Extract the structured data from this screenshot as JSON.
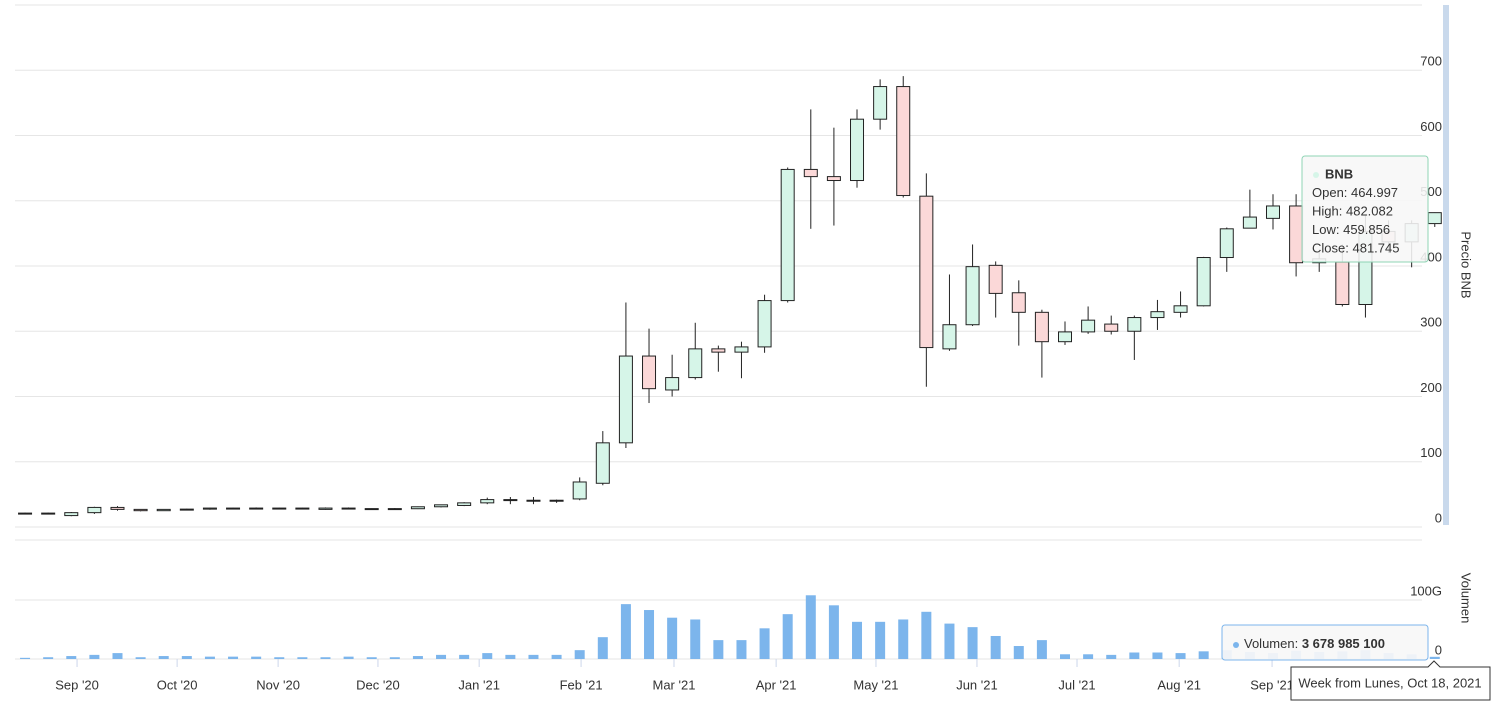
{
  "chart_data": [
    {
      "type": "candlestick",
      "y_axis_title": "Precio BNB",
      "categories": [
        null,
        null,
        null,
        null,
        null,
        null,
        null,
        null,
        null,
        null,
        null,
        null,
        null,
        null,
        null,
        null,
        null,
        null,
        null,
        null,
        null,
        null,
        null,
        null,
        null,
        null,
        null,
        null,
        null,
        null,
        null,
        null,
        null,
        null,
        null,
        null,
        null,
        null,
        null,
        null,
        null,
        null,
        null,
        null,
        null,
        null,
        null,
        null,
        null,
        null,
        null,
        null,
        null,
        null,
        null,
        null,
        null,
        null,
        null,
        null,
        null,
        null
      ],
      "up_color": "#d6f5e8",
      "down_color": "#fbd8d8",
      "line_color": "#222222",
      "series": [
        {
          "name": "BNB",
          "open": [
            21,
            21.3,
            17.5,
            22,
            30,
            27,
            25,
            27,
            27.4,
            29,
            28,
            29,
            28,
            27,
            29,
            28,
            28.2,
            28,
            31,
            33,
            37,
            42,
            40,
            40,
            43,
            67,
            129,
            262,
            210,
            229,
            273,
            268,
            276,
            347,
            548,
            537,
            531,
            625,
            675,
            507,
            273,
            310,
            401,
            359,
            329,
            284,
            299,
            311,
            300,
            321,
            329,
            339,
            413,
            458,
            473,
            492,
            405,
            406,
            341,
            453,
            437,
            464.997
          ],
          "high": [
            22,
            22,
            23,
            31,
            32,
            27.5,
            27.5,
            28,
            29.5,
            29.5,
            30,
            29.5,
            29.5,
            30,
            30,
            28.5,
            29,
            31.5,
            34.5,
            38,
            45,
            46,
            46,
            42,
            76,
            147,
            344,
            304,
            264,
            313,
            278,
            284,
            356,
            551,
            640,
            612,
            640,
            686,
            691,
            542,
            387,
            433,
            407,
            378,
            333,
            315,
            338,
            324,
            324,
            348,
            361,
            414,
            459,
            517,
            510,
            510,
            425,
            433,
            479,
            470,
            470,
            482.082
          ],
          "low": [
            20.5,
            20.8,
            16.5,
            20,
            25,
            24,
            24.5,
            26,
            26.5,
            27,
            27.5,
            27,
            27.5,
            26.5,
            27.5,
            27,
            27,
            27.5,
            30,
            32,
            35,
            35,
            35,
            37,
            41,
            64,
            121,
            190,
            200,
            226,
            238,
            228,
            267,
            344,
            457,
            462,
            520,
            609,
            505,
            215,
            270,
            308,
            321,
            278,
            229,
            279,
            296,
            295,
            256,
            302,
            321,
            338,
            391,
            459,
            456,
            384,
            391,
            338,
            321,
            420,
            398,
            459.856
          ],
          "close": [
            21.3,
            21.2,
            22,
            30,
            27,
            25,
            27,
            27.4,
            29,
            28,
            29,
            28,
            29,
            29,
            28,
            28.2,
            28,
            31,
            34,
            37,
            42,
            41,
            41,
            41,
            69,
            129,
            262,
            212,
            229,
            273,
            268,
            276,
            347,
            548,
            537,
            531,
            625,
            675,
            508,
            275,
            310,
            399,
            358,
            329,
            284,
            299,
            317,
            300,
            321,
            330,
            339,
            413,
            457,
            475,
            492,
            405,
            411,
            341,
            453,
            437,
            465,
            481.745
          ]
        }
      ],
      "ylim": [
        0,
        800
      ],
      "yticks": [
        0,
        100,
        200,
        300,
        400,
        500,
        600,
        700
      ],
      "grid": true
    },
    {
      "type": "bar",
      "y_axis_title": "Volumen",
      "categories": [
        null,
        null,
        null,
        null,
        null,
        null,
        null,
        null,
        null,
        null,
        null,
        null,
        null,
        null,
        null,
        null,
        null,
        null,
        null,
        null,
        null,
        null,
        null,
        null,
        null,
        null,
        null,
        null,
        null,
        null,
        null,
        null,
        null,
        null,
        null,
        null,
        null,
        null,
        null,
        null,
        null,
        null,
        null,
        null,
        null,
        null,
        null,
        null,
        null,
        null,
        null,
        null,
        null,
        null,
        null,
        null,
        null,
        null,
        null,
        null,
        null,
        null
      ],
      "series": [
        {
          "name": "Volumen",
          "color": "#7cb5ec",
          "values": [
            2,
            3,
            5,
            7,
            10,
            3,
            5,
            5,
            4,
            4,
            4,
            3,
            3,
            3,
            4,
            3,
            3,
            5,
            7,
            7,
            10,
            7,
            7,
            7,
            15,
            37,
            93,
            83,
            70,
            67,
            32,
            32,
            52,
            76,
            108,
            91,
            63,
            63,
            67,
            80,
            60,
            54,
            39,
            22,
            32,
            8,
            8,
            7,
            11,
            11,
            10,
            13,
            15,
            12,
            10,
            14,
            12,
            13,
            15,
            10,
            8,
            3.6789851
          ]
        }
      ],
      "ylim": [
        0,
        200
      ],
      "yticks": [
        0,
        {
          "value": 100,
          "label": "100G"
        }
      ],
      "grid": true,
      "xticks": [
        {
          "value": 2.25,
          "label": "Sep '20"
        },
        {
          "value": 6.58,
          "label": "Oct '20"
        },
        {
          "value": 10.95,
          "label": "Nov '20"
        },
        {
          "value": 15.27,
          "label": "Dec '20"
        },
        {
          "value": 19.65,
          "label": "Jan '21"
        },
        {
          "value": 24.06,
          "label": "Feb '21"
        },
        {
          "value": 28.08,
          "label": "Mar '21"
        },
        {
          "value": 32.5,
          "label": "Apr '21"
        },
        {
          "value": 36.82,
          "label": "May '21"
        },
        {
          "value": 41.19,
          "label": "Jun '21"
        },
        {
          "value": 45.52,
          "label": "Jul '21"
        },
        {
          "value": 49.94,
          "label": "Aug '21"
        },
        {
          "value": 53.96,
          "label": "Sep '21"
        }
      ]
    }
  ],
  "tooltip": {
    "name": "BNB",
    "labels": [
      "Open:",
      "High:",
      "Low:",
      "Close:"
    ],
    "volume_label": "Volumen:",
    "volume_value": "3 678 985 100",
    "x_label": "Week from Lunes, Oct 18, 2021"
  }
}
